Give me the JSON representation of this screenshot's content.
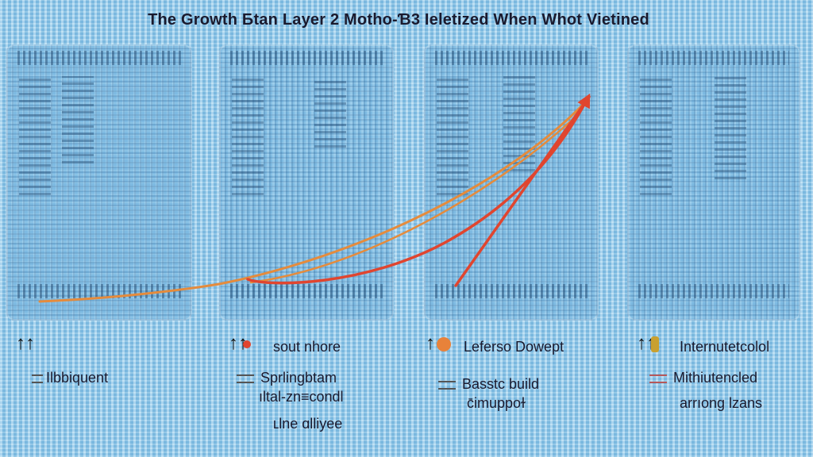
{
  "title": "The Growth Ƃtan Layer 2 Motho-Ɓ3 Ieletized When Whot Vietined",
  "colors": {
    "background": "#8ec9ec",
    "curve_orange": "#e58b3c",
    "curve_red": "#e0452f",
    "dot_orange": "#e8823a",
    "dot_gold": "#c9a030"
  },
  "panels": [
    {
      "legend": {
        "icon": "double-up-arrow-icon",
        "glyph": "↑↑",
        "label": ""
      },
      "sub_lines": [
        "Ilbbiquent"
      ]
    },
    {
      "legend": {
        "icon": "double-up-arrow-red-icon",
        "glyph": "↑↑",
        "label": "sout nhore"
      },
      "sub_lines": [
        "Sprlingbtam",
        "ıltal-zn≡condl",
        "ʟlne ɑlliyee"
      ]
    },
    {
      "legend": {
        "icon": "double-up-arrow-orange-dot-icon",
        "glyph": "↑↑",
        "label": "Leferso Dowept"
      },
      "sub_lines": [
        "Basstc build",
        "c̄imuppoɫ"
      ]
    },
    {
      "legend": {
        "icon": "double-up-arrow-gold-icon",
        "glyph": "↑↑",
        "label": "Internutetcolol"
      },
      "sub_lines": [
        "Mithiutencled",
        "arrıong lzans"
      ]
    }
  ]
}
